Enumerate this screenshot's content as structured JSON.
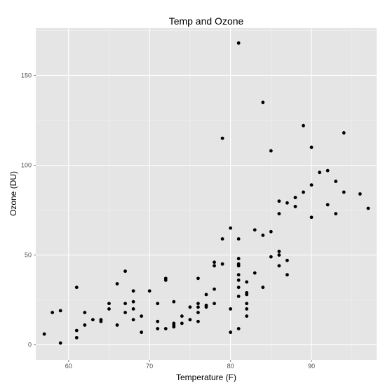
{
  "chart_data": {
    "type": "scatter",
    "title": "Temp and Ozone",
    "xlabel": "Temperature (F)",
    "ylabel": "Ozone (DU)",
    "xlim": [
      55.95,
      98.05
    ],
    "ylim": [
      -8.35,
      176.35
    ],
    "xticks": [
      60,
      70,
      80,
      90
    ],
    "yticks": [
      0,
      50,
      100,
      150
    ],
    "grid": true,
    "point_color": "#000000",
    "panel_color": "#e5e5e5",
    "grid_color": "#ffffff",
    "points": [
      [
        57,
        6
      ],
      [
        58,
        18
      ],
      [
        59,
        1
      ],
      [
        59,
        19
      ],
      [
        61,
        32
      ],
      [
        61,
        8
      ],
      [
        61,
        4
      ],
      [
        62,
        18
      ],
      [
        62,
        11
      ],
      [
        63,
        14
      ],
      [
        64,
        14
      ],
      [
        64,
        13
      ],
      [
        65,
        23
      ],
      [
        65,
        20
      ],
      [
        66,
        34
      ],
      [
        66,
        11
      ],
      [
        67,
        41
      ],
      [
        67,
        23
      ],
      [
        67,
        18
      ],
      [
        68,
        30
      ],
      [
        68,
        24
      ],
      [
        68,
        20
      ],
      [
        68,
        14
      ],
      [
        69,
        16
      ],
      [
        69,
        7
      ],
      [
        70,
        30
      ],
      [
        71,
        23
      ],
      [
        71,
        13
      ],
      [
        71,
        9
      ],
      [
        72,
        37
      ],
      [
        72,
        36
      ],
      [
        72,
        9
      ],
      [
        73,
        24
      ],
      [
        73,
        12
      ],
      [
        73,
        11
      ],
      [
        73,
        10
      ],
      [
        74,
        16
      ],
      [
        74,
        12
      ],
      [
        75,
        21
      ],
      [
        75,
        14
      ],
      [
        76,
        37
      ],
      [
        76,
        23
      ],
      [
        76,
        21
      ],
      [
        76,
        18
      ],
      [
        76,
        13
      ],
      [
        77,
        28
      ],
      [
        77,
        22
      ],
      [
        77,
        21
      ],
      [
        78,
        46
      ],
      [
        78,
        44
      ],
      [
        78,
        31
      ],
      [
        78,
        23
      ],
      [
        79,
        115
      ],
      [
        79,
        59
      ],
      [
        79,
        45
      ],
      [
        80,
        65
      ],
      [
        80,
        20
      ],
      [
        80,
        7
      ],
      [
        81,
        168
      ],
      [
        81,
        59
      ],
      [
        81,
        48
      ],
      [
        81,
        45
      ],
      [
        81,
        44
      ],
      [
        81,
        39
      ],
      [
        81,
        36
      ],
      [
        81,
        32
      ],
      [
        81,
        27
      ],
      [
        81,
        9
      ],
      [
        82,
        35
      ],
      [
        82,
        29
      ],
      [
        82,
        28
      ],
      [
        82,
        23
      ],
      [
        82,
        20
      ],
      [
        82,
        16
      ],
      [
        83,
        64
      ],
      [
        83,
        40
      ],
      [
        84,
        135
      ],
      [
        84,
        61
      ],
      [
        84,
        32
      ],
      [
        85,
        108
      ],
      [
        85,
        63
      ],
      [
        85,
        49
      ],
      [
        86,
        80
      ],
      [
        86,
        73
      ],
      [
        86,
        52
      ],
      [
        86,
        50
      ],
      [
        86,
        44
      ],
      [
        87,
        79
      ],
      [
        87,
        47
      ],
      [
        87,
        39
      ],
      [
        88,
        82
      ],
      [
        88,
        77
      ],
      [
        89,
        122
      ],
      [
        89,
        85
      ],
      [
        90,
        110
      ],
      [
        90,
        89
      ],
      [
        90,
        71
      ],
      [
        91,
        96
      ],
      [
        92,
        97
      ],
      [
        92,
        78
      ],
      [
        93,
        91
      ],
      [
        93,
        73
      ],
      [
        94,
        118
      ],
      [
        94,
        85
      ],
      [
        96,
        84
      ],
      [
        97,
        76
      ]
    ]
  }
}
